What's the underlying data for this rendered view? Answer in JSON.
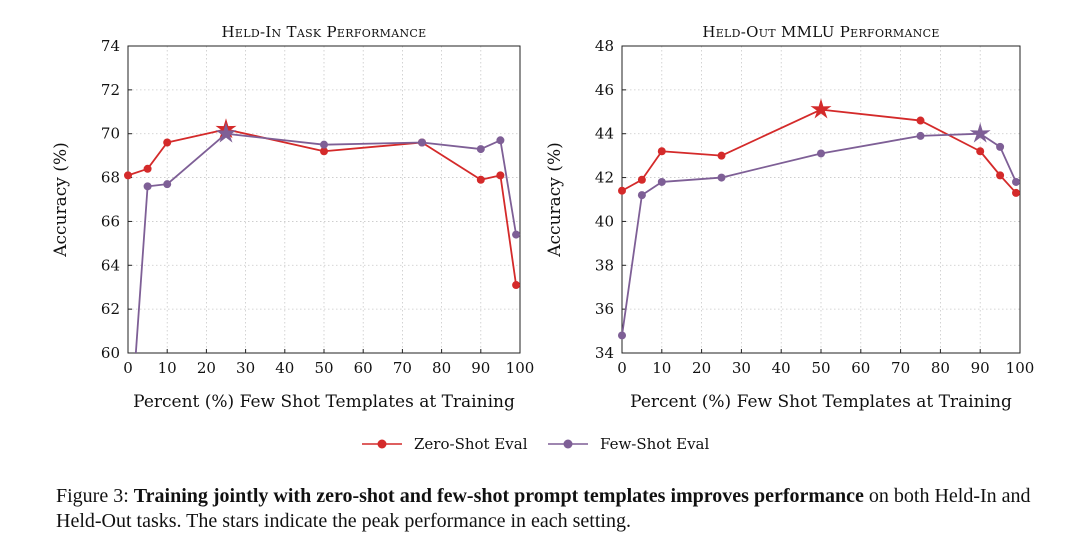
{
  "colors": {
    "zero_shot": "#d42a2a",
    "few_shot": "#7e5f96",
    "grid": "#c8c8c8",
    "axis": "#222222"
  },
  "legend": {
    "zero_shot": "Zero-Shot Eval",
    "few_shot": "Few-Shot Eval"
  },
  "chart_data": [
    {
      "type": "line",
      "title": "Held-In Task Performance",
      "xlabel": "Percent (%) Few Shot Templates at Training",
      "ylabel": "Accuracy (%)",
      "xlim": [
        0,
        100
      ],
      "ylim": [
        60,
        74
      ],
      "xticks": [
        0,
        10,
        20,
        30,
        40,
        50,
        60,
        70,
        80,
        90,
        100
      ],
      "yticks": [
        60,
        62,
        64,
        66,
        68,
        70,
        72,
        74
      ],
      "grid": true,
      "series": [
        {
          "name": "Zero-Shot Eval",
          "x": [
            0,
            5,
            10,
            25,
            50,
            75,
            90,
            95,
            99
          ],
          "y": [
            68.1,
            68.4,
            69.6,
            70.2,
            69.2,
            69.6,
            67.9,
            68.1,
            63.1
          ],
          "peak_index": 3
        },
        {
          "name": "Few-Shot Eval",
          "x": [
            5,
            10,
            25,
            50,
            75,
            90,
            95,
            99
          ],
          "y": [
            67.6,
            67.7,
            70.0,
            69.5,
            69.6,
            69.3,
            69.7,
            65.4
          ],
          "entry_from": [
            2,
            60
          ],
          "peak_index": 2
        }
      ]
    },
    {
      "type": "line",
      "title": "Held-Out MMLU Performance",
      "xlabel": "Percent (%) Few Shot Templates at Training",
      "ylabel": "Accuracy (%)",
      "xlim": [
        0,
        100
      ],
      "ylim": [
        34,
        48
      ],
      "xticks": [
        0,
        10,
        20,
        30,
        40,
        50,
        60,
        70,
        80,
        90,
        100
      ],
      "yticks": [
        34,
        36,
        38,
        40,
        42,
        44,
        46,
        48
      ],
      "grid": true,
      "series": [
        {
          "name": "Zero-Shot Eval",
          "x": [
            0,
            5,
            10,
            25,
            50,
            75,
            90,
            95,
            99
          ],
          "y": [
            41.4,
            41.9,
            43.2,
            43.0,
            45.1,
            44.6,
            43.2,
            42.1,
            41.3
          ],
          "peak_index": 4
        },
        {
          "name": "Few-Shot Eval",
          "x": [
            0,
            5,
            10,
            25,
            50,
            75,
            90,
            95,
            99
          ],
          "y": [
            34.8,
            41.2,
            41.8,
            42.0,
            43.1,
            43.9,
            44.0,
            43.4,
            41.8
          ],
          "peak_index": 6
        }
      ]
    }
  ],
  "caption": {
    "label": "Figure 3: ",
    "bold": "Training jointly with zero-shot and few-shot prompt templates improves performance",
    "rest": " on both Held-In and Held-Out tasks. The stars indicate the peak performance in each setting."
  }
}
